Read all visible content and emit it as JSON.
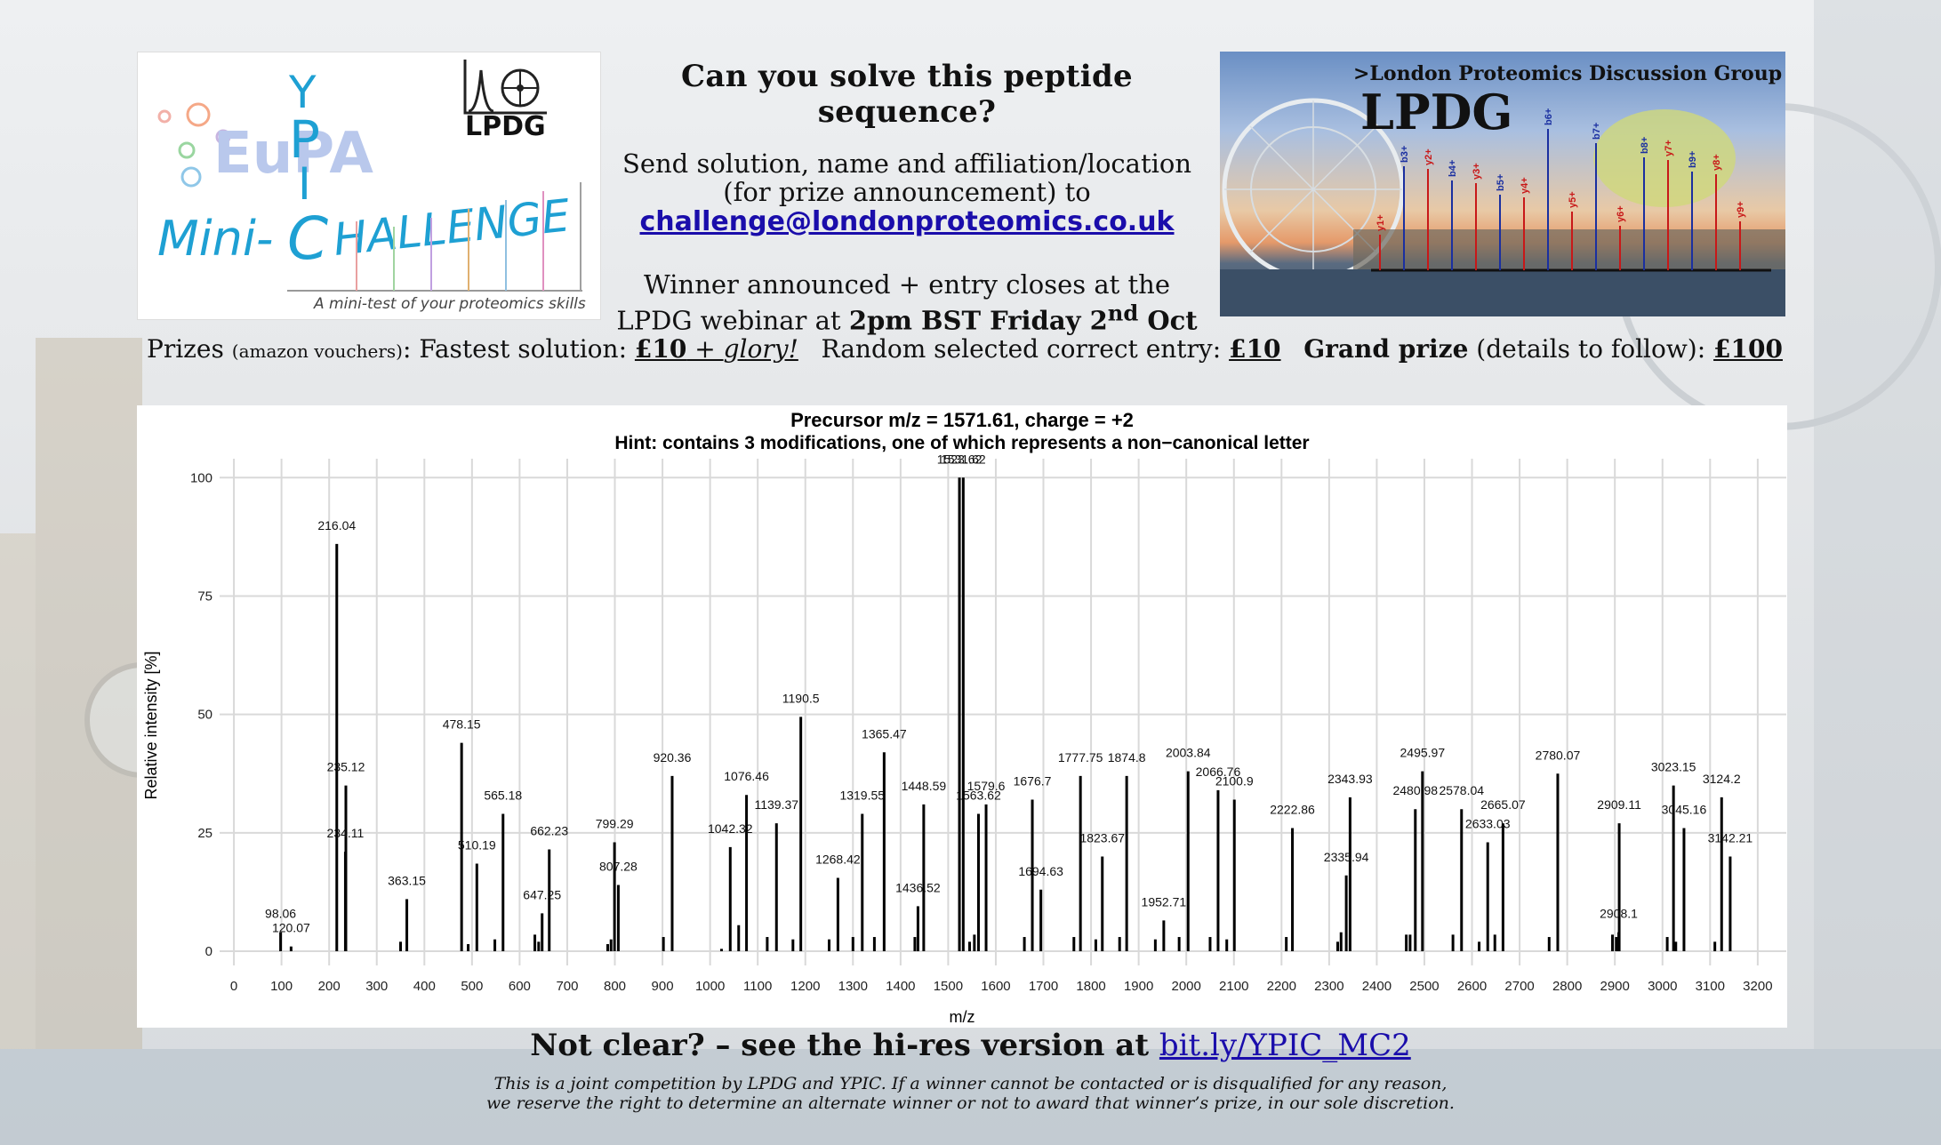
{
  "left_logo": {
    "ypic_letters": [
      "Y",
      "P",
      "I",
      "C"
    ],
    "eupa": "EuPA",
    "mini": "Mini-",
    "challenge": "HALLENGE",
    "lpdg": "LPDG",
    "tagline": "A mini-test of your proteomics skills"
  },
  "headline": "Can you solve this peptide sequence?",
  "send_line1": "Send solution, name and affiliation/location",
  "send_line2": "(for prize announcement) to",
  "email": "challenge@londonproteomics.co.uk",
  "winner_line1": "Winner announced + entry closes at the",
  "winner_line2_prefix": "LPDG webinar at ",
  "winner_line2_bold": "2pm BST Friday 2",
  "winner_line2_sup": "nd",
  "winner_line2_suffix": " Oct",
  "right_logo": {
    "group": ">London Proteomics Discussion Group",
    "title": "LPDG",
    "ion_labels_blue": [
      "b3+",
      "b4+",
      "b5+",
      "b6+",
      "b7+",
      "b8+",
      "b9+"
    ],
    "ion_labels_red": [
      "y1+",
      "y2+",
      "y3+",
      "y4+",
      "y5+",
      "y6+",
      "y7+",
      "y8+",
      "y9+"
    ]
  },
  "prizes": {
    "p1_label": "Prizes",
    "p1_small": "(amazon vouchers)",
    "p1_text": ": Fastest solution: ",
    "p1_amount": "£10",
    "p1_extra": " + ",
    "p1_glory": "glory!",
    "p2_text": "Random selected correct entry: ",
    "p2_amount": "£10",
    "p3_bold": "Grand prize",
    "p3_text": " (details to follow): ",
    "p3_amount": "£100"
  },
  "not_clear": "Not clear? – see the hi-res version at ",
  "link": "bit.ly/YPIC_MC2",
  "disclaimer_line1": "This is a joint competition by LPDG and YPIC. If a winner cannot be contacted or is disqualified for any reason,",
  "disclaimer_line2": "we reserve the right to determine an alternate winner or not to award that winner’s prize, in our sole discretion.",
  "chart_data": {
    "type": "bar",
    "title": "Precursor m/z = 1571.61, charge = +2",
    "subtitle": "Hint: contains 3 modifications, one of which represents a non−canonical letter",
    "xlabel": "m/z",
    "ylabel": "Relative intensity [%]",
    "xlim": [
      -30,
      3260
    ],
    "ylim": [
      -3,
      104
    ],
    "xticks": [
      0,
      100,
      200,
      300,
      400,
      500,
      600,
      700,
      800,
      900,
      1000,
      1100,
      1200,
      1300,
      1400,
      1500,
      1600,
      1700,
      1800,
      1900,
      2000,
      2100,
      2200,
      2300,
      2400,
      2500,
      2600,
      2700,
      2800,
      2900,
      3000,
      3100,
      3200
    ],
    "yticks": [
      0,
      25,
      50,
      75,
      100
    ],
    "grid": true,
    "peaks": [
      {
        "mz": 98.06,
        "i": 4,
        "label": "98.06"
      },
      {
        "mz": 120.07,
        "i": 1,
        "label": "120.07"
      },
      {
        "mz": 216.04,
        "i": 86,
        "label": "216.04"
      },
      {
        "mz": 234.11,
        "i": 21,
        "label": "234.11"
      },
      {
        "mz": 235.12,
        "i": 35,
        "label": "235.12"
      },
      {
        "mz": 350,
        "i": 2,
        "label": ""
      },
      {
        "mz": 363.15,
        "i": 11,
        "label": "363.15"
      },
      {
        "mz": 478.15,
        "i": 44,
        "label": "478.15"
      },
      {
        "mz": 492,
        "i": 1.5,
        "label": ""
      },
      {
        "mz": 510.19,
        "i": 18.5,
        "label": "510.19"
      },
      {
        "mz": 548,
        "i": 2.5,
        "label": ""
      },
      {
        "mz": 565.18,
        "i": 29,
        "label": "565.18"
      },
      {
        "mz": 632,
        "i": 3.5,
        "label": ""
      },
      {
        "mz": 640,
        "i": 2,
        "label": ""
      },
      {
        "mz": 647.25,
        "i": 8,
        "label": "647.25"
      },
      {
        "mz": 662.23,
        "i": 21.5,
        "label": "662.23"
      },
      {
        "mz": 785,
        "i": 1.5,
        "label": ""
      },
      {
        "mz": 792,
        "i": 2.5,
        "label": ""
      },
      {
        "mz": 799.29,
        "i": 23,
        "label": "799.29"
      },
      {
        "mz": 807.28,
        "i": 14,
        "label": "807.28"
      },
      {
        "mz": 902,
        "i": 3,
        "label": ""
      },
      {
        "mz": 920.36,
        "i": 37,
        "label": "920.36"
      },
      {
        "mz": 1024,
        "i": 0.5,
        "label": ""
      },
      {
        "mz": 1042.32,
        "i": 22,
        "label": "1042.32"
      },
      {
        "mz": 1060,
        "i": 5.5,
        "label": ""
      },
      {
        "mz": 1076.46,
        "i": 33,
        "label": "1076.46"
      },
      {
        "mz": 1120,
        "i": 3,
        "label": ""
      },
      {
        "mz": 1139.37,
        "i": 27,
        "label": "1139.37"
      },
      {
        "mz": 1174,
        "i": 2.5,
        "label": ""
      },
      {
        "mz": 1190.5,
        "i": 49.5,
        "label": "1190.5"
      },
      {
        "mz": 1250,
        "i": 2.5,
        "label": ""
      },
      {
        "mz": 1268.42,
        "i": 15.5,
        "label": "1268.42"
      },
      {
        "mz": 1300,
        "i": 3,
        "label": ""
      },
      {
        "mz": 1319.55,
        "i": 29,
        "label": "1319.55"
      },
      {
        "mz": 1345,
        "i": 3,
        "label": ""
      },
      {
        "mz": 1365.47,
        "i": 42,
        "label": "1365.47"
      },
      {
        "mz": 1430,
        "i": 3,
        "label": ""
      },
      {
        "mz": 1436.52,
        "i": 9.5,
        "label": "1436.52"
      },
      {
        "mz": 1448.59,
        "i": 31,
        "label": "1448.59"
      },
      {
        "mz": 1523.62,
        "i": 100,
        "label": "1523.62"
      },
      {
        "mz": 1531.62,
        "i": 100,
        "label": "1531.62"
      },
      {
        "mz": 1545,
        "i": 2,
        "label": ""
      },
      {
        "mz": 1555,
        "i": 3.5,
        "label": ""
      },
      {
        "mz": 1563.62,
        "i": 29,
        "label": "1563.62"
      },
      {
        "mz": 1579.6,
        "i": 31,
        "label": "1579.6"
      },
      {
        "mz": 1660,
        "i": 3,
        "label": ""
      },
      {
        "mz": 1676.7,
        "i": 32,
        "label": "1676.7"
      },
      {
        "mz": 1694.63,
        "i": 13,
        "label": "1694.63"
      },
      {
        "mz": 1764,
        "i": 3,
        "label": ""
      },
      {
        "mz": 1777.75,
        "i": 37,
        "label": "1777.75"
      },
      {
        "mz": 1810,
        "i": 2.5,
        "label": ""
      },
      {
        "mz": 1823.67,
        "i": 20,
        "label": "1823.67"
      },
      {
        "mz": 1860,
        "i": 3,
        "label": ""
      },
      {
        "mz": 1874.8,
        "i": 37,
        "label": "1874.8"
      },
      {
        "mz": 1935,
        "i": 2.5,
        "label": ""
      },
      {
        "mz": 1952.71,
        "i": 6.5,
        "label": "1952.71"
      },
      {
        "mz": 1985,
        "i": 3,
        "label": ""
      },
      {
        "mz": 2003.84,
        "i": 38,
        "label": "2003.84"
      },
      {
        "mz": 2050,
        "i": 3,
        "label": ""
      },
      {
        "mz": 2066.76,
        "i": 34,
        "label": "2066.76"
      },
      {
        "mz": 2085,
        "i": 2.5,
        "label": ""
      },
      {
        "mz": 2100.9,
        "i": 32,
        "label": "2100.9"
      },
      {
        "mz": 2210,
        "i": 3,
        "label": ""
      },
      {
        "mz": 2222.86,
        "i": 26,
        "label": "2222.86"
      },
      {
        "mz": 2318,
        "i": 2,
        "label": ""
      },
      {
        "mz": 2325,
        "i": 4,
        "label": ""
      },
      {
        "mz": 2335.94,
        "i": 16,
        "label": "2335.94"
      },
      {
        "mz": 2343.93,
        "i": 32.5,
        "label": "2343.93"
      },
      {
        "mz": 2462,
        "i": 3.5,
        "label": ""
      },
      {
        "mz": 2470,
        "i": 3.5,
        "label": ""
      },
      {
        "mz": 2480.98,
        "i": 30,
        "label": "2480.98"
      },
      {
        "mz": 2495.97,
        "i": 38,
        "label": "2495.97"
      },
      {
        "mz": 2560,
        "i": 3.5,
        "label": ""
      },
      {
        "mz": 2578.04,
        "i": 30,
        "label": "2578.04"
      },
      {
        "mz": 2615,
        "i": 2,
        "label": ""
      },
      {
        "mz": 2633.03,
        "i": 23,
        "label": "2633.03"
      },
      {
        "mz": 2648,
        "i": 3.5,
        "label": ""
      },
      {
        "mz": 2665.07,
        "i": 27,
        "label": "2665.07"
      },
      {
        "mz": 2762,
        "i": 3,
        "label": ""
      },
      {
        "mz": 2780.07,
        "i": 37.5,
        "label": "2780.07"
      },
      {
        "mz": 2895,
        "i": 3.5,
        "label": ""
      },
      {
        "mz": 2903,
        "i": 3,
        "label": ""
      },
      {
        "mz": 2908.1,
        "i": 4,
        "label": "2908.1"
      },
      {
        "mz": 2909.11,
        "i": 27,
        "label": "2909.11"
      },
      {
        "mz": 3010,
        "i": 3,
        "label": ""
      },
      {
        "mz": 3023.15,
        "i": 35,
        "label": "3023.15"
      },
      {
        "mz": 3028,
        "i": 2,
        "label": ""
      },
      {
        "mz": 3045.16,
        "i": 26,
        "label": "3045.16"
      },
      {
        "mz": 3110,
        "i": 2,
        "label": ""
      },
      {
        "mz": 3124.2,
        "i": 32.5,
        "label": "3124.2"
      },
      {
        "mz": 3142.21,
        "i": 20,
        "label": "3142.21"
      }
    ]
  }
}
